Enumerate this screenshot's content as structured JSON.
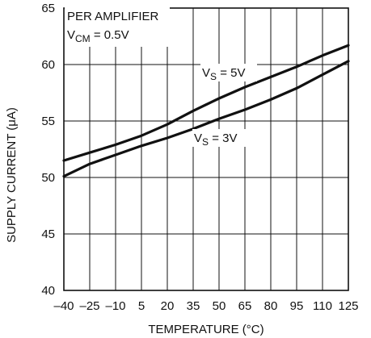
{
  "chart_data": {
    "type": "line",
    "title": "",
    "xlabel": "TEMPERATURE (°C)",
    "ylabel": "SUPPLY CURRENT (μA)",
    "xlim": [
      -40,
      125
    ],
    "ylim": [
      40,
      65
    ],
    "grid": true,
    "x_ticks": [
      "-40",
      "-25",
      "-10",
      "5",
      "20",
      "35",
      "50",
      "65",
      "80",
      "95",
      "110",
      "125"
    ],
    "y_ticks": [
      "40",
      "45",
      "50",
      "55",
      "60",
      "65"
    ],
    "annotation": {
      "line1": "PER AMPLIFIER",
      "line2_main": "V",
      "line2_sub": "CM",
      "line2_rest": " = 0.5V"
    },
    "series": [
      {
        "name": "VS = 5V",
        "label_main": "V",
        "label_sub": "S",
        "label_rest": " = 5V",
        "x": [
          -40,
          -25,
          -10,
          5,
          20,
          35,
          50,
          65,
          80,
          95,
          110,
          125
        ],
        "y": [
          51.5,
          52.2,
          52.9,
          53.7,
          54.7,
          55.9,
          57.0,
          58.0,
          58.9,
          59.8,
          60.8,
          61.7
        ]
      },
      {
        "name": "VS = 3V",
        "label_main": "V",
        "label_sub": "S",
        "label_rest": " = 3V",
        "x": [
          -40,
          -25,
          -10,
          5,
          20,
          35,
          50,
          65,
          80,
          95,
          110,
          125
        ],
        "y": [
          50.1,
          51.2,
          52.0,
          52.8,
          53.5,
          54.3,
          55.2,
          56.0,
          56.9,
          57.9,
          59.1,
          60.3
        ]
      }
    ]
  }
}
